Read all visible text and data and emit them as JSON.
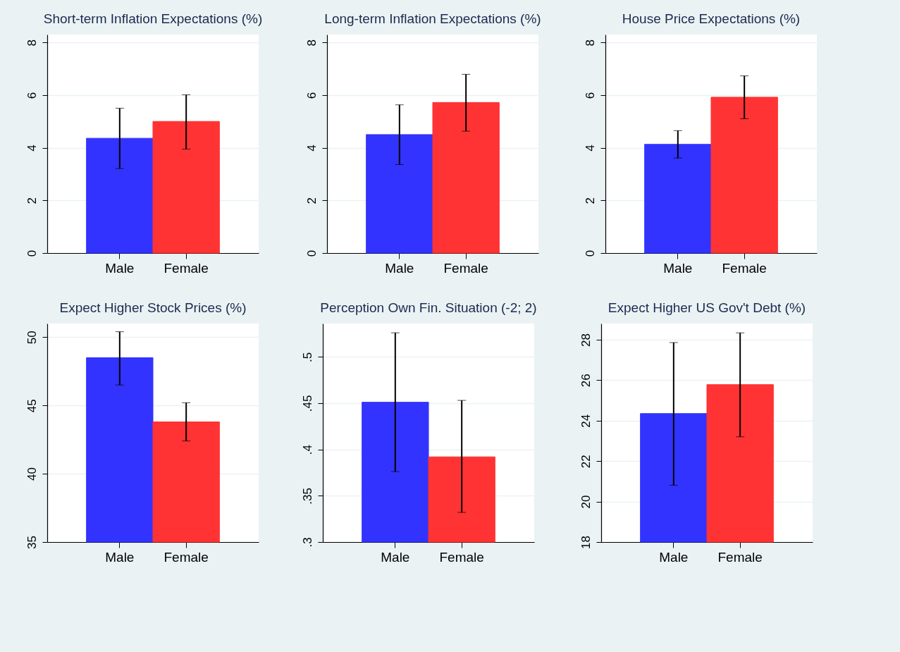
{
  "chart_data": [
    {
      "type": "bar",
      "title": "Short-term Inflation Expectations (%)",
      "categories": [
        "Male",
        "Female"
      ],
      "values": [
        4.36,
        5.0
      ],
      "colors": [
        "#3333ff",
        "#ff3333"
      ],
      "errors": [
        [
          3.21,
          5.5
        ],
        [
          3.95,
          6.01
        ]
      ],
      "ylim": [
        0,
        8.3
      ],
      "yticks": [
        0,
        2,
        4,
        6,
        8
      ],
      "grid": "y"
    },
    {
      "type": "bar",
      "title": "Long-term Inflation Expectations (%)",
      "categories": [
        "Male",
        "Female"
      ],
      "values": [
        4.5,
        5.72
      ],
      "colors": [
        "#3333ff",
        "#ff3333"
      ],
      "errors": [
        [
          3.36,
          5.63
        ],
        [
          4.63,
          6.79
        ]
      ],
      "ylim": [
        0,
        8.3
      ],
      "yticks": [
        0,
        2,
        4,
        6,
        8
      ],
      "grid": "y"
    },
    {
      "type": "bar",
      "title": "House Price Expectations (%)",
      "categories": [
        "Male",
        "Female"
      ],
      "values": [
        4.13,
        5.92
      ],
      "colors": [
        "#3333ff",
        "#ff3333"
      ],
      "errors": [
        [
          3.61,
          4.65
        ],
        [
          5.1,
          6.73
        ]
      ],
      "ylim": [
        0,
        8.3
      ],
      "yticks": [
        0,
        2,
        4,
        6,
        8
      ],
      "grid": "y"
    },
    {
      "type": "bar",
      "title": "Expect Higher Stock Prices (%)",
      "categories": [
        "Male",
        "Female"
      ],
      "values": [
        48.5,
        43.8
      ],
      "colors": [
        "#3333ff",
        "#ff3333"
      ],
      "errors": [
        [
          46.5,
          50.4
        ],
        [
          42.4,
          45.2
        ]
      ],
      "ylim": [
        35,
        51
      ],
      "yticks": [
        35,
        40,
        45,
        50
      ],
      "grid": "y"
    },
    {
      "type": "bar",
      "title": "Perception Own Fin. Situation (-2; 2)",
      "categories": [
        "Male",
        "Female"
      ],
      "values": [
        0.451,
        0.392
      ],
      "colors": [
        "#3333ff",
        "#ff3333"
      ],
      "errors": [
        [
          0.376,
          0.526
        ],
        [
          0.332,
          0.453
        ]
      ],
      "ylim": [
        0.3,
        0.536
      ],
      "yticks": [
        {
          "value": 0.3,
          "label": ".3"
        },
        {
          "value": 0.35,
          "label": ".35"
        },
        {
          "value": 0.4,
          "label": ".4"
        },
        {
          "value": 0.45,
          "label": ".45"
        },
        {
          "value": 0.5,
          "label": ".5"
        }
      ],
      "grid": "y"
    },
    {
      "type": "bar",
      "title": "Expect Higher US Gov't Debt (%)",
      "categories": [
        "Male",
        "Female"
      ],
      "values": [
        24.35,
        25.78
      ],
      "colors": [
        "#3333ff",
        "#ff3333"
      ],
      "errors": [
        [
          20.81,
          27.86
        ],
        [
          23.2,
          28.34
        ]
      ],
      "ylim": [
        18,
        28.8
      ],
      "yticks": [
        18,
        20,
        22,
        24,
        26,
        28
      ],
      "grid": "y"
    }
  ]
}
